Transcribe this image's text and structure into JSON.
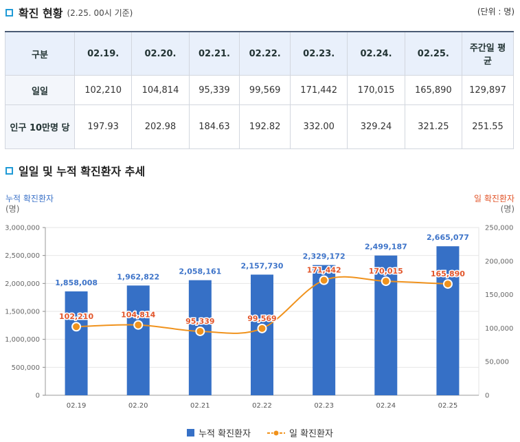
{
  "section1": {
    "title": "확진 현황",
    "subtitle": "(2.25. 00시 기준)",
    "unit": "(단위 : 명)"
  },
  "table": {
    "headers": [
      "구분",
      "02.19.",
      "02.20.",
      "02.21.",
      "02.22.",
      "02.23.",
      "02.24.",
      "02.25.",
      "주간일 평균"
    ],
    "rows": [
      {
        "label": "일일",
        "values": [
          "102,210",
          "104,814",
          "95,339",
          "99,569",
          "171,442",
          "170,015",
          "165,890",
          "129,897"
        ]
      },
      {
        "label": "인구 10만명 당",
        "values": [
          "197.93",
          "202.98",
          "184.63",
          "192.82",
          "332.00",
          "329.24",
          "321.25",
          "251.55"
        ]
      }
    ]
  },
  "section2": {
    "title": "일일 및 누적 확진환자 추세"
  },
  "axis_labels": {
    "left": "누적 확진환자",
    "left_unit": "(명)",
    "right": "일 확진환자",
    "right_unit": "(명)"
  },
  "legend": {
    "bar": "누적 확진환자",
    "line": "일 확진환자"
  },
  "colors": {
    "bar": "#3670c6",
    "line": "#f0921c",
    "bar_label": "#3e74c9",
    "line_label": "#e2562b"
  },
  "chart_data": {
    "type": "bar+line",
    "categories": [
      "02.19",
      "02.20",
      "02.21",
      "02.22",
      "02.23",
      "02.24",
      "02.25"
    ],
    "series": [
      {
        "name": "누적 확진환자",
        "type": "bar",
        "axis": "left",
        "values": [
          1858008,
          1962822,
          2058161,
          2157730,
          2329172,
          2499187,
          2665077
        ],
        "labels": [
          "1,858,008",
          "1,962,822",
          "2,058,161",
          "2,157,730",
          "2,329,172",
          "2,499,187",
          "2,665,077"
        ]
      },
      {
        "name": "일 확진환자",
        "type": "line",
        "axis": "right",
        "values": [
          102210,
          104814,
          95339,
          99569,
          171442,
          170015,
          165890
        ],
        "labels": [
          "102,210",
          "104,814",
          "95,339",
          "99,569",
          "171,442",
          "170,015",
          "165,890"
        ]
      }
    ],
    "left_axis": {
      "min": 0,
      "max": 3000000,
      "step": 500000,
      "ticks": [
        "0",
        "500,000",
        "1,000,000",
        "1,500,000",
        "2,000,000",
        "2,500,000",
        "3,000,000"
      ]
    },
    "right_axis": {
      "min": 0,
      "max": 250000,
      "step": 50000,
      "ticks": [
        "0",
        "50,000",
        "100,000",
        "150,000",
        "200,000",
        "250,000"
      ]
    },
    "grid": true,
    "legend_position": "bottom"
  }
}
